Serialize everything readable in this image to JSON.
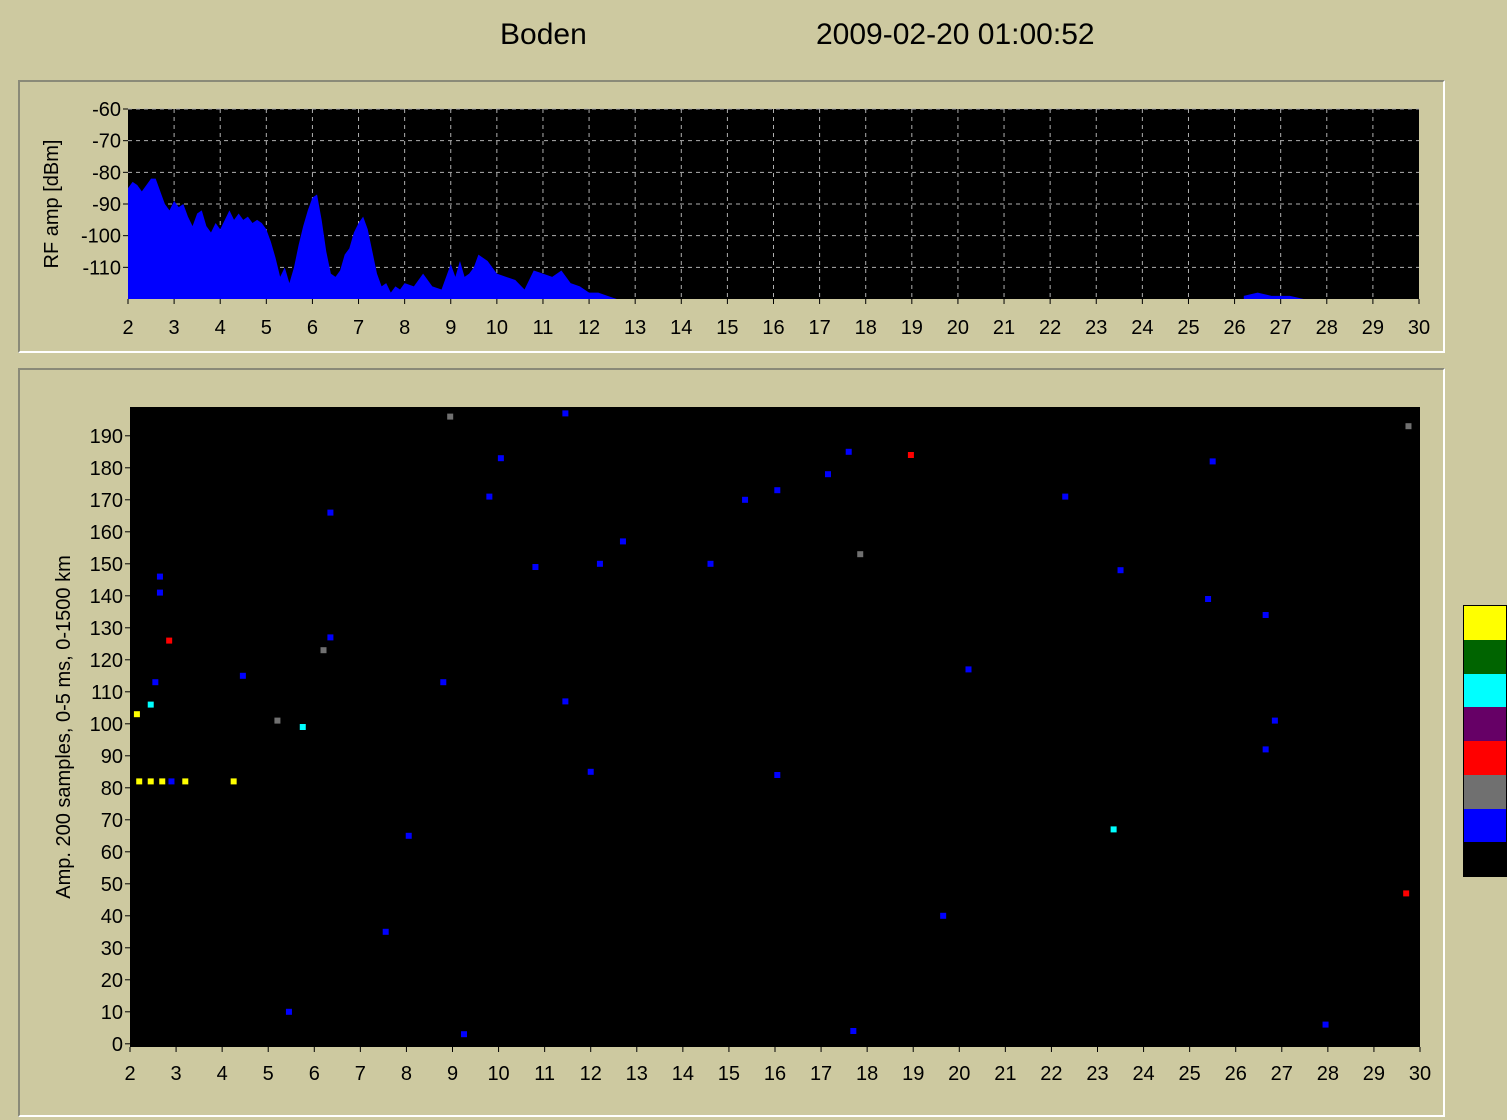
{
  "header": {
    "station": "Boden",
    "timestamp": "2009-02-20  01:00:52"
  },
  "colors": {
    "background": "#cdc9a0",
    "plot_bg": "#000000",
    "spectrum_fill": "#0000ff",
    "grid": "#b0b0b0",
    "legend": [
      "#ffff00",
      "#006400",
      "#00ffff",
      "#660066",
      "#ff0000",
      "#707070",
      "#0000ff",
      "#000000"
    ]
  },
  "chart_data": [
    {
      "type": "area",
      "ylabel": "RF amp [dBm]",
      "xlabel": "",
      "xlim": [
        2,
        30
      ],
      "ylim": [
        -120,
        -60
      ],
      "grid": true,
      "xticks": [
        2,
        3,
        4,
        5,
        6,
        7,
        8,
        9,
        10,
        11,
        12,
        13,
        14,
        15,
        16,
        17,
        18,
        19,
        20,
        21,
        22,
        23,
        24,
        25,
        26,
        27,
        28,
        29,
        30
      ],
      "yticks": [
        -60,
        -70,
        -80,
        -90,
        -100,
        -110
      ],
      "series": [
        {
          "x": [
            2.0,
            2.1,
            2.2,
            2.3,
            2.4,
            2.5,
            2.6,
            2.7,
            2.8,
            2.9,
            3.0,
            3.1,
            3.2,
            3.3,
            3.4,
            3.5,
            3.6,
            3.7,
            3.8,
            3.9,
            4.0,
            4.1,
            4.2,
            4.3,
            4.4,
            4.5,
            4.6,
            4.7,
            4.8,
            4.9,
            5.0,
            5.1,
            5.2,
            5.3,
            5.4,
            5.5,
            5.6,
            5.7,
            5.8,
            5.9,
            6.0,
            6.1,
            6.2,
            6.3,
            6.4,
            6.5,
            6.6,
            6.7,
            6.8,
            6.9,
            7.0,
            7.1,
            7.2,
            7.3,
            7.4,
            7.5,
            7.6,
            7.7,
            7.8,
            7.9,
            8.0,
            8.2,
            8.4,
            8.6,
            8.8,
            9.0,
            9.1,
            9.2,
            9.3,
            9.4,
            9.5,
            9.6,
            9.8,
            10.0,
            10.2,
            10.4,
            10.6,
            10.8,
            11.0,
            11.2,
            11.4,
            11.6,
            11.8,
            12.0,
            12.2,
            12.4,
            12.6,
            12.8,
            13.0,
            26.2,
            26.5,
            26.8,
            27.2,
            27.5
          ],
          "y": [
            -85,
            -83,
            -84,
            -86,
            -84,
            -82,
            -82,
            -86,
            -90,
            -92,
            -89,
            -91,
            -90,
            -94,
            -97,
            -93,
            -92,
            -97,
            -99,
            -96,
            -98,
            -95,
            -92,
            -95,
            -93,
            -95,
            -94,
            -96,
            -95,
            -96,
            -98,
            -102,
            -107,
            -113,
            -110,
            -115,
            -110,
            -103,
            -97,
            -92,
            -88,
            -87,
            -95,
            -105,
            -112,
            -113,
            -111,
            -106,
            -104,
            -99,
            -96,
            -94,
            -98,
            -105,
            -112,
            -116,
            -115,
            -118,
            -116,
            -117,
            -115,
            -116,
            -112,
            -116,
            -117,
            -109,
            -113,
            -108,
            -113,
            -112,
            -110,
            -106,
            -108,
            -112,
            -113,
            -114,
            -117,
            -111,
            -112,
            -113,
            -111,
            -115,
            -116,
            -118,
            -118,
            -119,
            -120,
            -120,
            -120,
            -119,
            -118,
            -119,
            -119,
            -120
          ]
        }
      ]
    },
    {
      "type": "scatter",
      "ylabel": "Amp. 200 samples, 0-5 ms, 0-1500 km",
      "xlabel": "",
      "xlim": [
        2,
        30
      ],
      "ylim": [
        -1,
        199
      ],
      "grid": false,
      "xticks": [
        2,
        3,
        4,
        5,
        6,
        7,
        8,
        9,
        10,
        11,
        12,
        13,
        14,
        15,
        16,
        17,
        18,
        19,
        20,
        21,
        22,
        23,
        24,
        25,
        26,
        27,
        28,
        29,
        30
      ],
      "yticks": [
        0,
        10,
        20,
        30,
        40,
        50,
        60,
        70,
        80,
        90,
        100,
        110,
        120,
        130,
        140,
        150,
        160,
        170,
        180,
        190
      ],
      "points": [
        {
          "x": 2.2,
          "y": 82,
          "c": "#ffff00"
        },
        {
          "x": 2.45,
          "y": 82,
          "c": "#ffff00"
        },
        {
          "x": 2.7,
          "y": 82,
          "c": "#ffff00"
        },
        {
          "x": 2.9,
          "y": 82,
          "c": "#0000ff"
        },
        {
          "x": 3.2,
          "y": 82,
          "c": "#ffff00"
        },
        {
          "x": 4.25,
          "y": 82,
          "c": "#ffff00"
        },
        {
          "x": 2.15,
          "y": 103,
          "c": "#ffff00"
        },
        {
          "x": 2.45,
          "y": 106,
          "c": "#00ffff"
        },
        {
          "x": 2.55,
          "y": 113,
          "c": "#0000ff"
        },
        {
          "x": 2.85,
          "y": 126,
          "c": "#ff0000"
        },
        {
          "x": 2.65,
          "y": 141,
          "c": "#0000ff"
        },
        {
          "x": 2.65,
          "y": 146,
          "c": "#0000ff"
        },
        {
          "x": 4.45,
          "y": 115,
          "c": "#0000ff"
        },
        {
          "x": 5.2,
          "y": 101,
          "c": "#707070"
        },
        {
          "x": 5.75,
          "y": 99,
          "c": "#00ffff"
        },
        {
          "x": 6.2,
          "y": 123,
          "c": "#707070"
        },
        {
          "x": 6.35,
          "y": 127,
          "c": "#0000ff"
        },
        {
          "x": 6.35,
          "y": 166,
          "c": "#0000ff"
        },
        {
          "x": 5.45,
          "y": 10,
          "c": "#0000ff"
        },
        {
          "x": 7.55,
          "y": 35,
          "c": "#0000ff"
        },
        {
          "x": 8.05,
          "y": 65,
          "c": "#0000ff"
        },
        {
          "x": 8.8,
          "y": 113,
          "c": "#0000ff"
        },
        {
          "x": 8.95,
          "y": 196,
          "c": "#707070"
        },
        {
          "x": 9.25,
          "y": 3,
          "c": "#0000ff"
        },
        {
          "x": 9.8,
          "y": 171,
          "c": "#0000ff"
        },
        {
          "x": 10.05,
          "y": 183,
          "c": "#0000ff"
        },
        {
          "x": 10.8,
          "y": 149,
          "c": "#0000ff"
        },
        {
          "x": 11.45,
          "y": 197,
          "c": "#0000ff"
        },
        {
          "x": 11.45,
          "y": 107,
          "c": "#0000ff"
        },
        {
          "x": 12.0,
          "y": 85,
          "c": "#0000ff"
        },
        {
          "x": 12.2,
          "y": 150,
          "c": "#0000ff"
        },
        {
          "x": 12.7,
          "y": 157,
          "c": "#0000ff"
        },
        {
          "x": 14.6,
          "y": 150,
          "c": "#0000ff"
        },
        {
          "x": 15.35,
          "y": 170,
          "c": "#0000ff"
        },
        {
          "x": 16.05,
          "y": 173,
          "c": "#0000ff"
        },
        {
          "x": 16.05,
          "y": 84,
          "c": "#0000ff"
        },
        {
          "x": 17.15,
          "y": 178,
          "c": "#0000ff"
        },
        {
          "x": 17.6,
          "y": 185,
          "c": "#0000ff"
        },
        {
          "x": 17.7,
          "y": 4,
          "c": "#0000ff"
        },
        {
          "x": 17.85,
          "y": 153,
          "c": "#707070"
        },
        {
          "x": 18.95,
          "y": 184,
          "c": "#ff0000"
        },
        {
          "x": 19.65,
          "y": 40,
          "c": "#0000ff"
        },
        {
          "x": 20.2,
          "y": 117,
          "c": "#0000ff"
        },
        {
          "x": 22.3,
          "y": 171,
          "c": "#0000ff"
        },
        {
          "x": 23.35,
          "y": 67,
          "c": "#00ffff"
        },
        {
          "x": 23.5,
          "y": 148,
          "c": "#0000ff"
        },
        {
          "x": 25.4,
          "y": 139,
          "c": "#0000ff"
        },
        {
          "x": 25.5,
          "y": 182,
          "c": "#0000ff"
        },
        {
          "x": 26.65,
          "y": 134,
          "c": "#0000ff"
        },
        {
          "x": 26.65,
          "y": 92,
          "c": "#0000ff"
        },
        {
          "x": 26.85,
          "y": 101,
          "c": "#0000ff"
        },
        {
          "x": 27.95,
          "y": 6,
          "c": "#0000ff"
        },
        {
          "x": 29.7,
          "y": 47,
          "c": "#ff0000"
        },
        {
          "x": 29.75,
          "y": 193,
          "c": "#707070"
        }
      ]
    }
  ]
}
